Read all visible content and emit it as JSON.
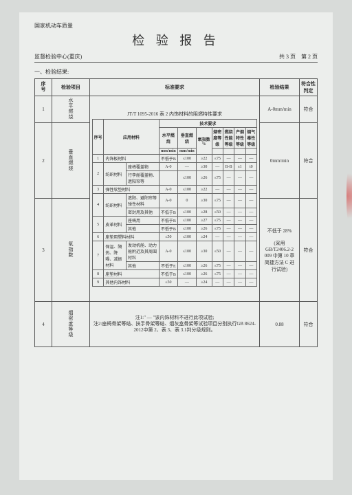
{
  "header": {
    "org_top": "国家机动车质量",
    "title": "检 验 报 告",
    "org_sub": "监督检验中心(重庆)",
    "page_info_a": "共 3 页",
    "page_info_b": "第 2 页"
  },
  "section_heading": "一、检验结果:",
  "outer_head": {
    "c1": "序号",
    "c2": "检验项目",
    "c3": "标准要求",
    "c4": "检验结果",
    "c5": "符合性判定"
  },
  "rows": {
    "r1": {
      "no": "1",
      "item": "水平燃烧",
      "result": "A-0mm/min",
      "verdict": "符合"
    },
    "r2": {
      "no": "2",
      "item": "垂直燃烧",
      "result": "0mm/min",
      "verdict": "符合"
    },
    "r3": {
      "no": "3",
      "item": "氧指数",
      "result_a": "不低于 28%",
      "result_b": "(采用",
      "result_c": "GB/T2406.2-2",
      "result_d": "009 中第 10 章",
      "result_e": "简捷方法 C 进",
      "result_f": "行试验)",
      "verdict": "符合"
    },
    "r4": {
      "no": "4",
      "item": "烟密度等级",
      "req_note1": "注1:\" — \"该内饰材料不进行此项试验;",
      "req_note2": "注2:座椅骨架等结、扶手骨架等结、烟灰盒骨架等试验项目分别执行GB 8624-2012中第 2、表 3、表 3.1判分级规则。",
      "result": "0.88",
      "verdict": "符合"
    }
  },
  "inner_caption": "JT/T 1095-2016 表 2    内饰材料的阻燃特性要求",
  "inner_head": {
    "h_top": "技术要求",
    "h_no": "序号",
    "h_mat": "应用材料",
    "h_c1a": "水平燃",
    "h_c1b": "烧",
    "h_c1u": "mm/min",
    "h_c2a": "垂直燃",
    "h_c2b": "烧",
    "h_c2u": "mm/min",
    "h_c3a": "氧指数",
    "h_c3b": "%",
    "h_c4a": "烟密",
    "h_c4b": "度等",
    "h_c4c": "级",
    "h_c5a": "燃烧",
    "h_c5b": "性能",
    "h_c5c": "等级",
    "h_c6a": "产烟",
    "h_c6b": "特性",
    "h_c6c": "等级",
    "h_c7a": "烟气",
    "h_c7b": "毒性",
    "h_c7c": "等级"
  },
  "inner_rows": [
    {
      "n": "1",
      "mg": "内饰板材料",
      "ms": "",
      "c1": "不低于B",
      "c2": "≤100",
      "c3": "≥22",
      "c4": "≤75",
      "c5": "—",
      "c6": "—",
      "c7": "—"
    },
    {
      "n": "2",
      "mg": "纺织材料",
      "ms": "座椅覆盖物",
      "c1": "A-0",
      "c2": "—",
      "c3": "≥30",
      "c4": "—",
      "c5": "B-B",
      "c6": "s1",
      "c7": "t0"
    },
    {
      "n": "",
      "mg": "",
      "ms": "行李舱覆盖物、遮阳帘等",
      "c1": "",
      "c2": "≤100",
      "c3": "≥26",
      "c4": "≤75",
      "c5": "—",
      "c6": "—",
      "c7": "—"
    },
    {
      "n": "3",
      "mg": "弹性软垫材料",
      "ms": "",
      "c1": "A-0",
      "c2": "≤100",
      "c3": "≥22",
      "c4": "—",
      "c5": "—",
      "c6": "—",
      "c7": "—"
    },
    {
      "n": "4",
      "mg": "纺织材料",
      "ms": "遮阳、避阳帘等弹性材料",
      "c1": "A-0",
      "c2": "0",
      "c3": "≥30",
      "c4": "≤75",
      "c5": "—",
      "c6": "—",
      "c7": "—"
    },
    {
      "n": "",
      "mg": "",
      "ms": "密封用及其他",
      "c1": "不低于B",
      "c2": "≤100",
      "c3": "≥28",
      "c4": "≤50",
      "c5": "—",
      "c6": "—",
      "c7": "—"
    },
    {
      "n": "5",
      "mg": "皮革材料",
      "ms": "座椅用",
      "c1": "不低于B",
      "c2": "≤100",
      "c3": "≥27",
      "c4": "≤75",
      "c5": "—",
      "c6": "—",
      "c7": "—"
    },
    {
      "n": "",
      "mg": "",
      "ms": "其他",
      "c1": "不低于B",
      "c2": "≤100",
      "c3": "≥26",
      "c4": "≤75",
      "c5": "—",
      "c6": "—",
      "c7": "—"
    },
    {
      "n": "6",
      "mg": "座垫用塑料材料",
      "ms": "",
      "c1": "≤50",
      "c2": "≤100",
      "c3": "≥24",
      "c4": "—",
      "c5": "—",
      "c6": "—",
      "c7": "—"
    },
    {
      "n": "7",
      "mg": "保温、隔热、降噪、减振材料",
      "ms": "发动机舱、动力舱附近及其周围材料",
      "c1": "A-0",
      "c2": "≤100",
      "c3": "≥30",
      "c4": "≤50",
      "c5": "—",
      "c6": "—",
      "c7": "—"
    },
    {
      "n": "",
      "mg": "",
      "ms": "其他",
      "c1": "不低于E",
      "c2": "≤100",
      "c3": "≥26",
      "c4": "≤75",
      "c5": "—",
      "c6": "—",
      "c7": "—"
    },
    {
      "n": "8",
      "mg": "座垫材料",
      "ms": "",
      "c1": "不低于B",
      "c2": "≤100",
      "c3": "≥26",
      "c4": "≤75",
      "c5": "—",
      "c6": "—",
      "c7": "—"
    },
    {
      "n": "9",
      "mg": "其他内饰材料",
      "ms": "",
      "c1": "≤50",
      "c2": "—",
      "c3": "≥24",
      "c4": "—",
      "c5": "—",
      "c6": "—",
      "c7": "—"
    }
  ]
}
